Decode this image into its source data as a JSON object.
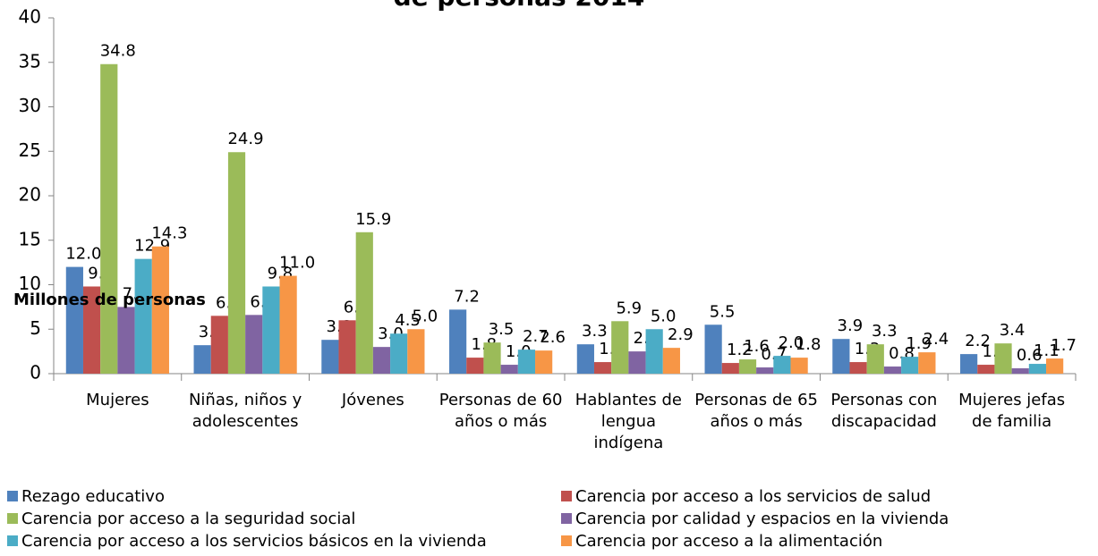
{
  "chart_data": {
    "type": "bar",
    "title": "de personas 2014",
    "y_label": "Millones de personas",
    "categories": [
      "Mujeres",
      "Niñas, niños y adolescentes",
      "Jóvenes",
      "Personas de 60 años o más",
      "Hablantes de lengua indígena",
      "Personas de 65 años o más",
      "Personas con discapacidad",
      "Mujeres jefas de familia"
    ],
    "series": [
      {
        "name": "Rezago educativo",
        "color": "#4f81bd",
        "values": [
          12.0,
          3.2,
          3.8,
          7.2,
          3.3,
          5.5,
          3.9,
          2.2
        ],
        "value_labels": [
          "12.0",
          "3.2",
          "3.8",
          "7.2",
          "3.3",
          "5.5",
          "3.9",
          "2.2"
        ]
      },
      {
        "name": "Carencia por acceso a los servicios de salud",
        "color": "#c0504d",
        "values": [
          9.8,
          6.5,
          6.0,
          1.8,
          1.3,
          1.2,
          1.3,
          1.0
        ],
        "value_labels": [
          "9.8",
          "6.5",
          "6.0",
          "1.8",
          "1.3",
          "1.2",
          "1.3",
          "1.0"
        ]
      },
      {
        "name": "Carencia por acceso a la seguridad social",
        "color": "#9bbb59",
        "values": [
          34.8,
          24.9,
          15.9,
          3.5,
          5.9,
          1.6,
          3.3,
          3.4
        ],
        "value_labels": [
          "34.8",
          "24.9",
          "15.9",
          "3.5",
          "5.9",
          "1.6",
          "3.3",
          "3.4"
        ]
      },
      {
        "name": "Carencia por calidad y espacios en la vivienda",
        "color": "#8064a2",
        "values": [
          7.5,
          6.6,
          3.0,
          1.0,
          2.5,
          0.7,
          0.8,
          0.6
        ],
        "value_labels": [
          "7.5",
          "6.6",
          "3.0",
          "1.0",
          "2.5",
          "0.7",
          "0.8",
          "0.6"
        ]
      },
      {
        "name": "Carencia por acceso a los servicios básicos en la vivienda",
        "color": "#4bacc6",
        "values": [
          12.9,
          9.8,
          4.5,
          2.7,
          5.0,
          2.0,
          1.9,
          1.1
        ],
        "value_labels": [
          "12.9",
          "9.8",
          "4.5",
          "2.7",
          "5.0",
          "2.0",
          "1.9",
          "1.1"
        ]
      },
      {
        "name": "Carencia por acceso a la alimentación",
        "color": "#f79646",
        "values": [
          14.3,
          11.0,
          5.0,
          2.6,
          2.9,
          1.8,
          2.4,
          1.7
        ],
        "value_labels": [
          "14.3",
          "11.0",
          "5.0",
          "2.6",
          "2.9",
          "1.8",
          "2.4",
          "1.7"
        ]
      }
    ],
    "ylim": [
      0,
      40
    ],
    "yticks": [
      0,
      5,
      10,
      15,
      20,
      25,
      30,
      35,
      40
    ],
    "grid": false
  }
}
